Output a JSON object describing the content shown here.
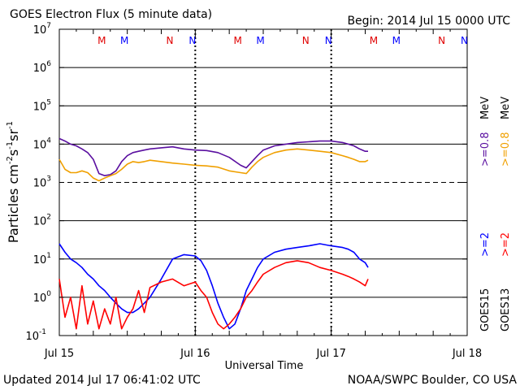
{
  "header": {
    "title": "GOES Electron Flux (5 minute data)",
    "begin": "Begin: 2014 Jul 15 0000 UTC"
  },
  "footer": {
    "updated": "Updated 2014 Jul 17 06:41:02 UTC",
    "credit": "NOAA/SWPC Boulder, CO USA"
  },
  "axes": {
    "xlabel": "Universal Time",
    "ylabel_base": "Particles cm",
    "ylabel_exp1": "-2",
    "ylabel_mid1": "s",
    "ylabel_exp2": "-1",
    "ylabel_mid2": "sr",
    "ylabel_exp3": "-1"
  },
  "legend": {
    "goes15_high": ">=2",
    "goes15_low": ">=0.8",
    "goes13_high": ">=2",
    "goes13_low": ">=0.8",
    "unit": "MeV",
    "goes15": "GOES15",
    "goes13": "GOES13"
  },
  "colors": {
    "goes15_high": "#0000ff",
    "goes13_high": "#ff0000",
    "goes15_low": "#5a0fa0",
    "goes13_low": "#f0a000",
    "marker_m_red": "#e00000",
    "marker_m_blue": "#0000ff"
  },
  "chart_data": {
    "type": "line",
    "title": "GOES Electron Flux (5 minute data)",
    "xlabel": "Universal Time",
    "ylabel": "Particles cm-2 s-1 sr-1",
    "yscale": "log",
    "ylim": [
      0.1,
      10000000
    ],
    "xlim": [
      0,
      72
    ],
    "x_unit": "hours since 2014 Jul 15 0000 UTC",
    "xticks": [
      {
        "x": 0,
        "label": "Jul 15"
      },
      {
        "x": 24,
        "label": "Jul 16"
      },
      {
        "x": 48,
        "label": "Jul 17"
      },
      {
        "x": 72,
        "label": "Jul 18"
      }
    ],
    "yticks": [
      {
        "base": "10",
        "exp": "-1"
      },
      {
        "base": "10",
        "exp": "0"
      },
      {
        "base": "10",
        "exp": "1"
      },
      {
        "base": "10",
        "exp": "2"
      },
      {
        "base": "10",
        "exp": "3"
      },
      {
        "base": "10",
        "exp": "4"
      },
      {
        "base": "10",
        "exp": "5"
      },
      {
        "base": "10",
        "exp": "6"
      },
      {
        "base": "10",
        "exp": "7"
      }
    ],
    "threshold_line": {
      "y": 1000,
      "style": "dashed"
    },
    "day_dividers": [
      24,
      48
    ],
    "markers": [
      {
        "x": 7.5,
        "label": "M",
        "color": "red"
      },
      {
        "x": 11.5,
        "label": "M",
        "color": "blue"
      },
      {
        "x": 19.5,
        "label": "N",
        "color": "red"
      },
      {
        "x": 23.5,
        "label": "N",
        "color": "blue"
      },
      {
        "x": 31.5,
        "label": "M",
        "color": "red"
      },
      {
        "x": 35.5,
        "label": "M",
        "color": "blue"
      },
      {
        "x": 43.5,
        "label": "N",
        "color": "red"
      },
      {
        "x": 47.5,
        "label": "N",
        "color": "blue"
      },
      {
        "x": 55.5,
        "label": "M",
        "color": "red"
      },
      {
        "x": 59.5,
        "label": "M",
        "color": "blue"
      },
      {
        "x": 67.5,
        "label": "N",
        "color": "red"
      },
      {
        "x": 71.5,
        "label": "N",
        "color": "blue"
      }
    ],
    "series": [
      {
        "name": "GOES15 >=0.8 MeV",
        "color": "#5a0fa0",
        "x": [
          0,
          1,
          2,
          3,
          4,
          5,
          6,
          7,
          8,
          9,
          10,
          11,
          12,
          13,
          14,
          15,
          16,
          18,
          20,
          22,
          24,
          26,
          28,
          30,
          32,
          33,
          34,
          35,
          36,
          38,
          40,
          42,
          44,
          46,
          48,
          50,
          51,
          52,
          53,
          54,
          54.5
        ],
        "y": [
          14000,
          12000,
          10000,
          9000,
          7500,
          6000,
          4000,
          1700,
          1500,
          1600,
          2000,
          3500,
          5000,
          6000,
          6500,
          7000,
          7500,
          8000,
          8500,
          7500,
          7000,
          6800,
          6000,
          4500,
          2800,
          2400,
          3500,
          5000,
          7000,
          9000,
          10000,
          11000,
          11500,
          12000,
          12000,
          11000,
          10000,
          9000,
          7500,
          6500,
          6500
        ]
      },
      {
        "name": "GOES13 >=0.8 MeV",
        "color": "#f0a000",
        "x": [
          0,
          1,
          2,
          3,
          4,
          5,
          6,
          7,
          8,
          9,
          10,
          11,
          12,
          13,
          14,
          15,
          16,
          18,
          20,
          22,
          24,
          26,
          28,
          30,
          32,
          33,
          34,
          35,
          36,
          38,
          40,
          42,
          44,
          46,
          48,
          50,
          51,
          52,
          53,
          54,
          54.5
        ],
        "y": [
          4000,
          2200,
          1800,
          1800,
          2000,
          1800,
          1300,
          1100,
          1300,
          1500,
          1700,
          2200,
          3000,
          3500,
          3300,
          3500,
          3800,
          3500,
          3200,
          3000,
          2800,
          2700,
          2500,
          2000,
          1800,
          1700,
          2500,
          3500,
          4500,
          6000,
          7000,
          7500,
          7000,
          6500,
          6000,
          5000,
          4500,
          4000,
          3500,
          3500,
          3800
        ]
      },
      {
        "name": "GOES15 >=2 MeV",
        "color": "#0000ff",
        "x": [
          0,
          1,
          2,
          3,
          4,
          5,
          6,
          7,
          8,
          9,
          10,
          11,
          12,
          13,
          14,
          15,
          16,
          18,
          20,
          22,
          24,
          25,
          26,
          27,
          28,
          29,
          30,
          31,
          32,
          33,
          34,
          35,
          36,
          38,
          40,
          42,
          44,
          46,
          48,
          50,
          51,
          52,
          53,
          54,
          54.5
        ],
        "y": [
          25,
          15,
          10,
          8,
          6,
          4,
          3,
          2,
          1.5,
          1,
          0.7,
          0.5,
          0.4,
          0.4,
          0.5,
          0.7,
          1,
          3,
          10,
          13,
          12,
          9,
          5,
          2,
          0.7,
          0.3,
          0.15,
          0.2,
          0.5,
          1.5,
          3,
          6,
          10,
          15,
          18,
          20,
          22,
          25,
          22,
          20,
          18,
          15,
          10,
          8,
          6
        ]
      },
      {
        "name": "GOES13 >=2 MeV",
        "color": "#ff0000",
        "x": [
          0,
          1,
          2,
          3,
          4,
          5,
          6,
          7,
          8,
          9,
          10,
          11,
          12,
          13,
          14,
          15,
          16,
          18,
          20,
          22,
          24,
          25,
          26,
          27,
          28,
          29,
          30,
          31,
          32,
          33,
          34,
          35,
          36,
          38,
          40,
          42,
          44,
          46,
          48,
          50,
          51,
          52,
          53,
          54,
          54.5
        ],
        "y": [
          3,
          0.3,
          1,
          0.15,
          2,
          0.2,
          0.8,
          0.15,
          0.5,
          0.2,
          1,
          0.15,
          0.3,
          0.5,
          1.5,
          0.4,
          1.8,
          2.5,
          3,
          2,
          2.5,
          1.5,
          1,
          0.4,
          0.2,
          0.15,
          0.2,
          0.3,
          0.5,
          1,
          1.5,
          2.5,
          4,
          6,
          8,
          9,
          8,
          6,
          5,
          4,
          3.5,
          3,
          2.5,
          2,
          3
        ]
      }
    ]
  }
}
